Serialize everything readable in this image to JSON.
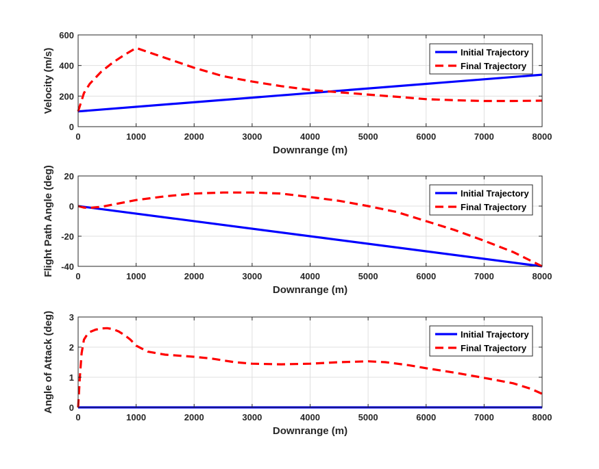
{
  "chart_data": [
    {
      "type": "line",
      "xlabel": "Downrange (m)",
      "ylabel": "Velocity (m/s)",
      "xlim": [
        0,
        8000
      ],
      "ylim": [
        0,
        600
      ],
      "xticks": [
        0,
        1000,
        2000,
        3000,
        4000,
        5000,
        6000,
        7000,
        8000
      ],
      "yticks": [
        0,
        200,
        400,
        600
      ],
      "grid": true,
      "legend_position": "top-right",
      "series": [
        {
          "name": "Initial Trajectory",
          "style": "solid",
          "color": "#0000ff",
          "x": [
            0,
            8000
          ],
          "y": [
            100,
            340
          ]
        },
        {
          "name": "Final Trajectory",
          "style": "dashed",
          "color": "#ff0000",
          "x": [
            0,
            100,
            200,
            400,
            600,
            800,
            1000,
            1500,
            2000,
            2500,
            3000,
            3500,
            4000,
            4500,
            5000,
            5500,
            6000,
            6500,
            7000,
            7500,
            8000
          ],
          "y": [
            100,
            220,
            280,
            360,
            420,
            470,
            515,
            450,
            385,
            330,
            295,
            265,
            240,
            225,
            210,
            195,
            180,
            173,
            168,
            168,
            170
          ]
        }
      ]
    },
    {
      "type": "line",
      "xlabel": "Downrange (m)",
      "ylabel": "Flight Path Angle (deg)",
      "xlim": [
        0,
        8000
      ],
      "ylim": [
        -40,
        20
      ],
      "xticks": [
        0,
        1000,
        2000,
        3000,
        4000,
        5000,
        6000,
        7000,
        8000
      ],
      "yticks": [
        -40,
        -20,
        0,
        20
      ],
      "grid": true,
      "legend_position": "top-right",
      "series": [
        {
          "name": "Initial Trajectory",
          "style": "solid",
          "color": "#0000ff",
          "x": [
            0,
            8000
          ],
          "y": [
            0,
            -40
          ]
        },
        {
          "name": "Final Trajectory",
          "style": "dashed",
          "color": "#ff0000",
          "x": [
            0,
            100,
            200,
            400,
            600,
            800,
            1000,
            1500,
            2000,
            2500,
            3000,
            3500,
            4000,
            4500,
            5000,
            5500,
            6000,
            6500,
            7000,
            7500,
            8000
          ],
          "y": [
            0,
            -1,
            -1.2,
            -0.5,
            1,
            2.5,
            4,
            6.5,
            8.3,
            9,
            9,
            8.3,
            6,
            3.5,
            0,
            -4,
            -10,
            -16,
            -23,
            -30.5,
            -40
          ]
        }
      ]
    },
    {
      "type": "line",
      "xlabel": "Downrange (m)",
      "ylabel": "Angle of Attack (deg)",
      "xlim": [
        0,
        8000
      ],
      "ylim": [
        0,
        3
      ],
      "xticks": [
        0,
        1000,
        2000,
        3000,
        4000,
        5000,
        6000,
        7000,
        8000
      ],
      "yticks": [
        0,
        1,
        2,
        3
      ],
      "grid": true,
      "legend_position": "top-right",
      "series": [
        {
          "name": "Initial Trajectory",
          "style": "solid",
          "color": "#0000ff",
          "x": [
            0,
            8000
          ],
          "y": [
            0,
            0
          ]
        },
        {
          "name": "Final Trajectory",
          "style": "dashed",
          "color": "#ff0000",
          "x": [
            0,
            30,
            60,
            100,
            150,
            200,
            300,
            400,
            500,
            600,
            700,
            800,
            900,
            1000,
            1200,
            1500,
            2000,
            2300,
            2700,
            3000,
            3500,
            4000,
            4500,
            5000,
            5300,
            5700,
            6000,
            6500,
            7000,
            7500,
            7800,
            8000
          ],
          "y": [
            0,
            1,
            1.8,
            2.25,
            2.4,
            2.5,
            2.58,
            2.62,
            2.63,
            2.6,
            2.52,
            2.4,
            2.25,
            2.05,
            1.85,
            1.75,
            1.68,
            1.62,
            1.5,
            1.45,
            1.43,
            1.45,
            1.5,
            1.53,
            1.5,
            1.4,
            1.3,
            1.15,
            0.98,
            0.8,
            0.62,
            0.45
          ]
        }
      ]
    }
  ]
}
